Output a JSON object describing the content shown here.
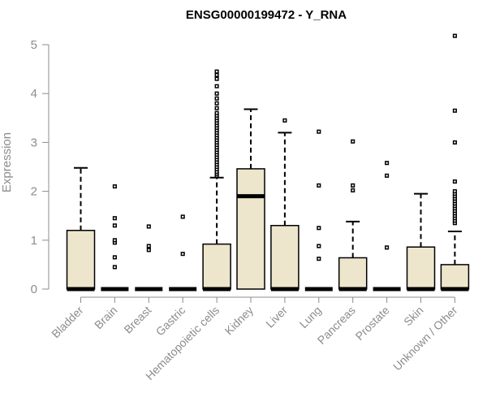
{
  "chart_data": {
    "type": "boxplot",
    "title": "ENSG00000199472 - Y_RNA",
    "xlabel": "",
    "ylabel": "Expression",
    "ylim": [
      0,
      5.2
    ],
    "yticks": [
      0,
      1,
      2,
      3,
      4,
      5
    ],
    "box_color": "#EDE6CD",
    "categories": [
      "Bladder",
      "Brain",
      "Breast",
      "Gastric",
      "Hematopoietic cells",
      "Kidney",
      "Liver",
      "Lung",
      "Pancreas",
      "Prostate",
      "Skin",
      "Unknown / Other"
    ],
    "boxes": [
      {
        "q1": 0,
        "median": 0,
        "q3": 1.2,
        "whisker_low": 0,
        "whisker_high": 2.48,
        "outliers": []
      },
      {
        "q1": 0,
        "median": 0,
        "q3": 0,
        "whisker_low": 0,
        "whisker_high": 0,
        "outliers": [
          0.45,
          0.65,
          0.95,
          1.0,
          1.3,
          1.45,
          2.1
        ]
      },
      {
        "q1": 0,
        "median": 0,
        "q3": 0,
        "whisker_low": 0,
        "whisker_high": 0,
        "outliers": [
          0.8,
          0.88,
          1.28
        ]
      },
      {
        "q1": 0,
        "median": 0,
        "q3": 0,
        "whisker_low": 0,
        "whisker_high": 0,
        "outliers": [
          0.72,
          1.48
        ]
      },
      {
        "q1": 0,
        "median": 0,
        "q3": 0.92,
        "whisker_low": 0,
        "whisker_high": 2.28,
        "outliers": [
          2.32,
          2.36,
          2.4,
          2.45,
          2.5,
          2.55,
          2.6,
          2.65,
          2.7,
          2.75,
          2.8,
          2.85,
          2.9,
          2.95,
          3.0,
          3.05,
          3.1,
          3.15,
          3.2,
          3.25,
          3.3,
          3.35,
          3.4,
          3.45,
          3.5,
          3.55,
          3.6,
          3.7,
          3.8,
          3.9,
          4.0,
          4.15,
          4.3,
          4.38,
          4.45
        ]
      },
      {
        "q1": 0,
        "median": 1.9,
        "q3": 2.46,
        "whisker_low": 0,
        "whisker_high": 3.68,
        "outliers": []
      },
      {
        "q1": 0,
        "median": 0,
        "q3": 1.3,
        "whisker_low": 0,
        "whisker_high": 3.2,
        "outliers": [
          3.45
        ]
      },
      {
        "q1": 0,
        "median": 0,
        "q3": 0,
        "whisker_low": 0,
        "whisker_high": 0,
        "outliers": [
          0.62,
          0.88,
          1.25,
          2.12,
          3.22
        ]
      },
      {
        "q1": 0,
        "median": 0,
        "q3": 0.64,
        "whisker_low": 0,
        "whisker_high": 1.38,
        "outliers": [
          2.02,
          2.12,
          3.02
        ]
      },
      {
        "q1": 0,
        "median": 0,
        "q3": 0,
        "whisker_low": 0,
        "whisker_high": 0,
        "outliers": [
          0.85,
          2.32,
          2.58
        ]
      },
      {
        "q1": 0,
        "median": 0,
        "q3": 0.86,
        "whisker_low": 0,
        "whisker_high": 1.95,
        "outliers": []
      },
      {
        "q1": 0,
        "median": 0,
        "q3": 0.5,
        "whisker_low": 0,
        "whisker_high": 1.18,
        "outliers": [
          1.35,
          1.4,
          1.45,
          1.5,
          1.55,
          1.6,
          1.65,
          1.7,
          1.75,
          1.8,
          1.85,
          1.9,
          1.95,
          2.0,
          2.2,
          3.0,
          3.65,
          5.18
        ]
      }
    ]
  }
}
